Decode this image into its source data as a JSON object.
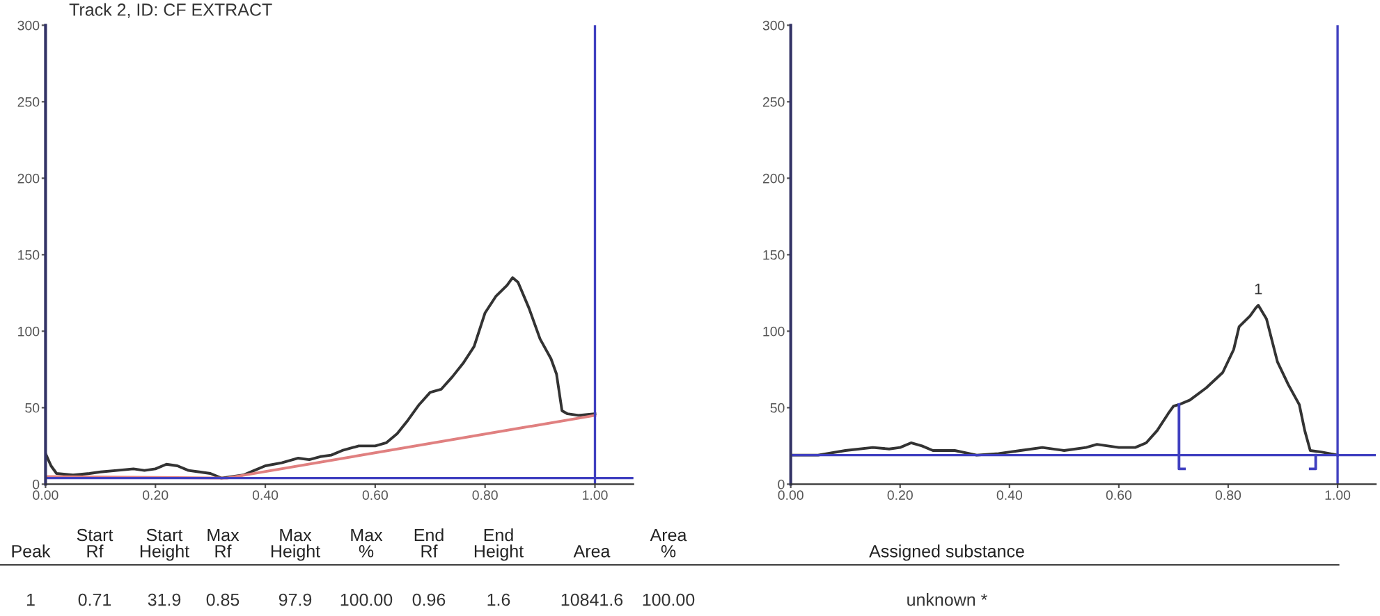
{
  "chart_data": [
    {
      "type": "line",
      "title": "Track 2, ID: CF EXTRACT",
      "xlim": [
        0,
        1.07
      ],
      "ylim": [
        0,
        300
      ],
      "xticks": [
        {
          "value": 0,
          "label": "0.00"
        },
        {
          "value": 0.2,
          "label": "0.20"
        },
        {
          "value": 0.4,
          "label": "0.40"
        },
        {
          "value": 0.6,
          "label": "0.60"
        },
        {
          "value": 0.8,
          "label": "0.80"
        },
        {
          "value": 1.0,
          "label": "1.00"
        }
      ],
      "yticks": [
        0,
        50,
        100,
        150,
        200,
        250,
        300
      ],
      "series": [
        {
          "color": "#333333",
          "x": [
            0.0,
            0.01,
            0.02,
            0.05,
            0.08,
            0.1,
            0.13,
            0.16,
            0.18,
            0.2,
            0.22,
            0.24,
            0.26,
            0.28,
            0.3,
            0.32,
            0.34,
            0.36,
            0.38,
            0.4,
            0.43,
            0.46,
            0.48,
            0.5,
            0.52,
            0.54,
            0.57,
            0.6,
            0.62,
            0.64,
            0.66,
            0.68,
            0.7,
            0.72,
            0.74,
            0.76,
            0.78,
            0.8,
            0.82,
            0.84,
            0.85,
            0.86,
            0.88,
            0.9,
            0.92,
            0.93,
            0.94,
            0.95,
            0.97,
            1.0
          ],
          "values": [
            20,
            12,
            7,
            6,
            7,
            8,
            9,
            10,
            9,
            10,
            13,
            12,
            9,
            8,
            7,
            4,
            5,
            6,
            9,
            12,
            14,
            17,
            16,
            18,
            19,
            22,
            25,
            25,
            27,
            33,
            42,
            52,
            60,
            62,
            70,
            79,
            90,
            112,
            123,
            130,
            135,
            132,
            115,
            95,
            82,
            72,
            48,
            46,
            45,
            46
          ]
        },
        {
          "color": "#e08080",
          "x": [
            0.0,
            0.33,
            1.0
          ],
          "values": [
            5,
            4,
            45
          ]
        }
      ],
      "ref_lines": [
        {
          "axis": "x",
          "value": 1.0,
          "color": "#4040c0"
        },
        {
          "axis": "y",
          "value": 4,
          "color": "#4040c0"
        }
      ],
      "grid": false,
      "legend": false,
      "line_style": "solid",
      "marker": "none"
    },
    {
      "type": "line",
      "xlim": [
        0,
        1.07
      ],
      "ylim": [
        0,
        300
      ],
      "xticks": [
        {
          "value": 0,
          "label": "0.00"
        },
        {
          "value": 0.2,
          "label": "0.20"
        },
        {
          "value": 0.4,
          "label": "0.40"
        },
        {
          "value": 0.6,
          "label": "0.60"
        },
        {
          "value": 0.8,
          "label": "0.80"
        },
        {
          "value": 1.0,
          "label": "1.00"
        }
      ],
      "yticks": [
        0,
        50,
        100,
        150,
        200,
        250,
        300
      ],
      "series": [
        {
          "color": "#333333",
          "x": [
            0.0,
            0.05,
            0.1,
            0.15,
            0.18,
            0.2,
            0.22,
            0.24,
            0.26,
            0.3,
            0.34,
            0.38,
            0.42,
            0.46,
            0.5,
            0.54,
            0.56,
            0.6,
            0.63,
            0.65,
            0.67,
            0.69,
            0.7,
            0.71,
            0.73,
            0.76,
            0.79,
            0.81,
            0.82,
            0.84,
            0.85,
            0.855,
            0.87,
            0.89,
            0.91,
            0.93,
            0.94,
            0.95,
            0.97,
            1.0
          ],
          "values": [
            19,
            19,
            22,
            24,
            23,
            24,
            27,
            25,
            22,
            22,
            19,
            20,
            22,
            24,
            22,
            24,
            26,
            24,
            24,
            27,
            35,
            46,
            51,
            52,
            55,
            63,
            73,
            88,
            103,
            110,
            115,
            117,
            108,
            80,
            65,
            52,
            35,
            22,
            21,
            19
          ]
        },
        {
          "color": "#4040c0",
          "x": [
            0.71,
            0.71,
            0.72
          ],
          "values": [
            52,
            10,
            10
          ]
        },
        {
          "color": "#4040c0",
          "x": [
            0.96,
            0.96,
            0.95
          ],
          "values": [
            19,
            10,
            10
          ]
        }
      ],
      "ref_lines": [
        {
          "axis": "x",
          "value": 1.0,
          "color": "#4040c0"
        },
        {
          "axis": "y",
          "value": 19,
          "color": "#4040c0"
        }
      ],
      "annotations": [
        {
          "text": "1",
          "x": 0.855,
          "y": 117
        }
      ],
      "grid": false,
      "legend": false,
      "line_style": "solid",
      "marker": "none"
    },
    {
      "type": "other",
      "categories": [
        "Peak",
        "Start\nRf",
        "Start\nHeight",
        "Max\nRf",
        "Max\nHeight",
        "Max\n%",
        "End\nRf",
        "End\nHeight",
        "Area",
        "Area\n%",
        "Assigned substance"
      ],
      "annotations": [
        "1",
        "0.71",
        "31.9",
        "0.85",
        "97.9",
        "100.00",
        "0.96",
        "1.6",
        "10841.6",
        "100.00",
        "unknown *"
      ]
    }
  ]
}
